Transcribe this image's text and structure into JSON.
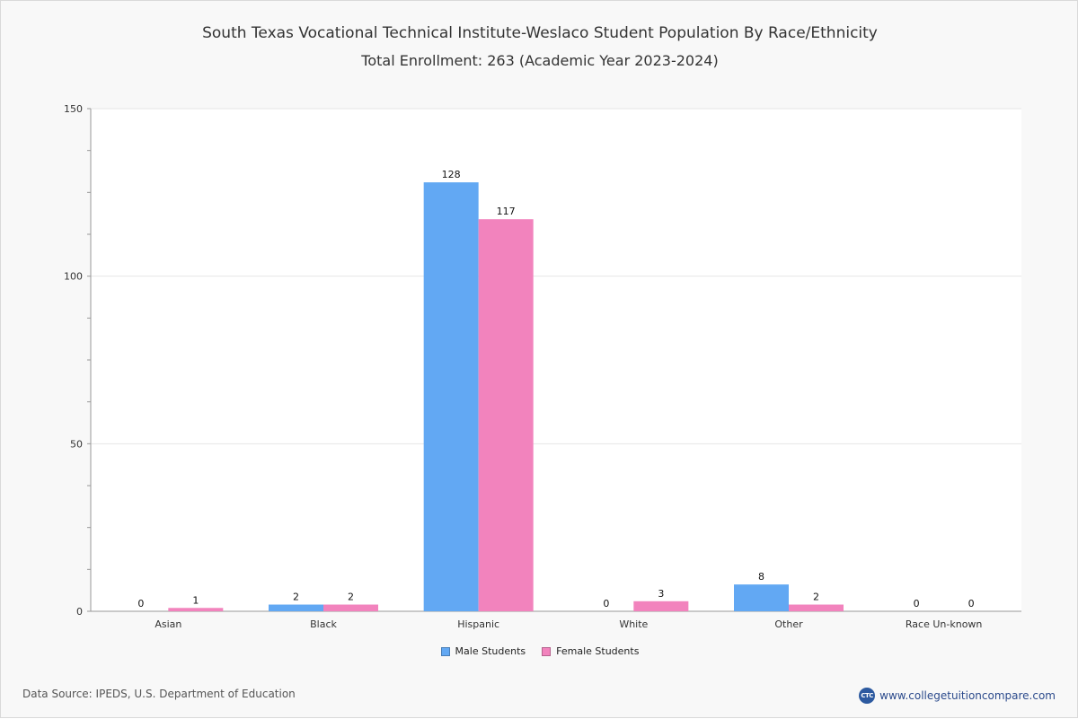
{
  "chart_data": {
    "type": "bar",
    "title": "South Texas Vocational Technical Institute-Weslaco Student Population By Race/Ethnicity",
    "subtitle": "Total Enrollment: 263 (Academic Year 2023-2024)",
    "categories": [
      "Asian",
      "Black",
      "Hispanic",
      "White",
      "Other",
      "Race Un-known"
    ],
    "series": [
      {
        "name": "Male Students",
        "values": [
          0,
          2,
          128,
          0,
          8,
          0
        ],
        "color": "#62a8f3"
      },
      {
        "name": "Female Students",
        "values": [
          1,
          2,
          117,
          3,
          2,
          0
        ],
        "color": "#f283bd"
      }
    ],
    "ylim": [
      0,
      150
    ],
    "yticks": [
      0,
      50,
      100,
      150
    ],
    "xlabel": "",
    "ylabel": "",
    "grid": true,
    "legend": "bottom-center"
  },
  "footer": {
    "source": "Data Source: IPEDS, U.S. Department of Education",
    "brand": "www.collegetuitioncompare.com",
    "brand_logo": "CTC"
  },
  "colors": {
    "grid": "#e6e6e6",
    "axis": "#999999"
  }
}
